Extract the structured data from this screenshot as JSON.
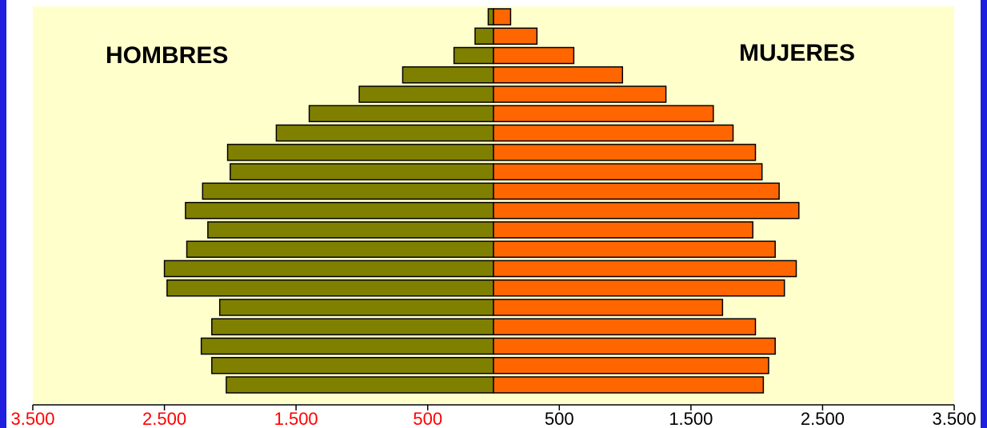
{
  "chart_data": {
    "type": "bar",
    "subtype": "population-pyramid",
    "group_labels": {
      "left": "HOMBRES",
      "right": "MUJERES"
    },
    "series": [
      {
        "name": "HOMBRES",
        "color": "#808000",
        "values": [
          2030,
          2140,
          2220,
          2140,
          2080,
          2480,
          2500,
          2330,
          2170,
          2340,
          2210,
          2000,
          2020,
          1650,
          1400,
          1020,
          690,
          300,
          140,
          40
        ]
      },
      {
        "name": "MUJERES",
        "color": "#ff6600",
        "values": [
          2050,
          2090,
          2140,
          1990,
          1740,
          2210,
          2300,
          2140,
          1970,
          2320,
          2170,
          2040,
          1990,
          1820,
          1670,
          1310,
          980,
          610,
          330,
          130
        ]
      }
    ],
    "x_ticks": {
      "left": [
        "3.500",
        "2.500",
        "1.500",
        "500"
      ],
      "right": [
        "500",
        "1.500",
        "2.500",
        "3.500"
      ]
    },
    "xlim": [
      -3500,
      3500
    ],
    "colors": {
      "plot_background": "#ffffcc",
      "left_tick_text": "#ff0000",
      "right_tick_text": "#000000",
      "frame": "#1f1fe0"
    }
  }
}
